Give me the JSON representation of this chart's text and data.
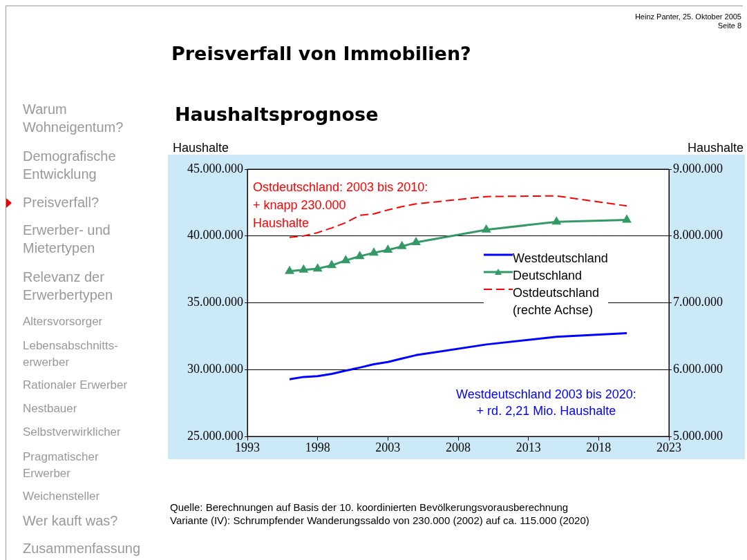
{
  "chart_data": {
    "type": "line",
    "title": "Preisverfall von Immobilien?",
    "subtitle": "Haushaltsprognose",
    "ylabel": "Haushalte",
    "y2label": "Haushalte",
    "x": [
      1996,
      1997,
      1998,
      1999,
      2000,
      2001,
      2002,
      2003,
      2004,
      2005,
      2010,
      2015,
      2020
    ],
    "series": [
      {
        "name": "Westdeutschland",
        "color": "#0000ff",
        "values": [
          29280000,
          29450000,
          29510000,
          29680000,
          29920000,
          30150000,
          30400000,
          30570000,
          30830000,
          31080000,
          31880000,
          32450000,
          32730000
        ]
      },
      {
        "name": "Deutschland",
        "color": "#339966",
        "marker": "triangle",
        "values": [
          37360000,
          37470000,
          37550000,
          37800000,
          38170000,
          38480000,
          38740000,
          38950000,
          39220000,
          39520000,
          40470000,
          41060000,
          41200000
        ]
      },
      {
        "name": "Ostdeutschland\n(rechte Achse)",
        "color": "#ff0000",
        "axis": "y2",
        "line_style": "dashed",
        "values": [
          7980000,
          8000000,
          8050000,
          8120000,
          8200000,
          8310000,
          8330000,
          8390000,
          8440000,
          8480000,
          8590000,
          8600000,
          8450000
        ]
      }
    ],
    "xlim": [
      1993,
      2023
    ],
    "xticks": [
      1993,
      1998,
      2003,
      2008,
      2013,
      2018,
      2023
    ],
    "ylim": [
      25000000,
      45000000
    ],
    "yticks": [
      {
        "value": 25000000,
        "label": "25.000.000"
      },
      {
        "value": 30000000,
        "label": "30.000.000"
      },
      {
        "value": 35000000,
        "label": "35.000.000"
      },
      {
        "value": 40000000,
        "label": "40.000.000"
      },
      {
        "value": 45000000,
        "label": "45.000.000"
      }
    ],
    "y2lim": [
      5000000,
      9000000
    ],
    "y2ticks": [
      {
        "value": 5000000,
        "label": "5.000.000"
      },
      {
        "value": 6000000,
        "label": "6.000.000"
      },
      {
        "value": 7000000,
        "label": "7.000.000"
      },
      {
        "value": 8000000,
        "label": "8.000.000"
      },
      {
        "value": 9000000,
        "label": "9.000.000"
      }
    ],
    "grid": "y",
    "legend": "right",
    "marker": "none",
    "annotations": [
      "Heinz Panter, 25. Oktober 2005",
      "Seite 8",
      "Warum Wohneigentum?",
      "Demografische Entwicklung",
      "Preisverfall?",
      "Erwerber- und Mietertypen",
      "Relevanz der Erwerbertypen",
      "Altersvorsorger",
      "Lebensabschnitts-erwerber",
      "Rationaler Erwerber",
      "Nestbauer",
      "Selbstverwirklicher",
      "Pragmatischer Erwerber",
      "Weichensteller",
      "Wer kauft was?",
      "Zusammenfassung",
      "Ostdeutschland: 2003 bis 2010:\n+ knapp 230.000\nHaushalte",
      "Westdeutschland 2003 bis 2020:\n+ rd. 2,21 Mio. Haushalte",
      "Quelle: Berechnungen auf Basis der 10. koordinierten Bevölkerungsvorausberechnung\nVariante (IV): Schrumpfender Wanderungssaldo von 230.000 (2002) auf ca. 115.000 (2020)"
    ]
  }
}
